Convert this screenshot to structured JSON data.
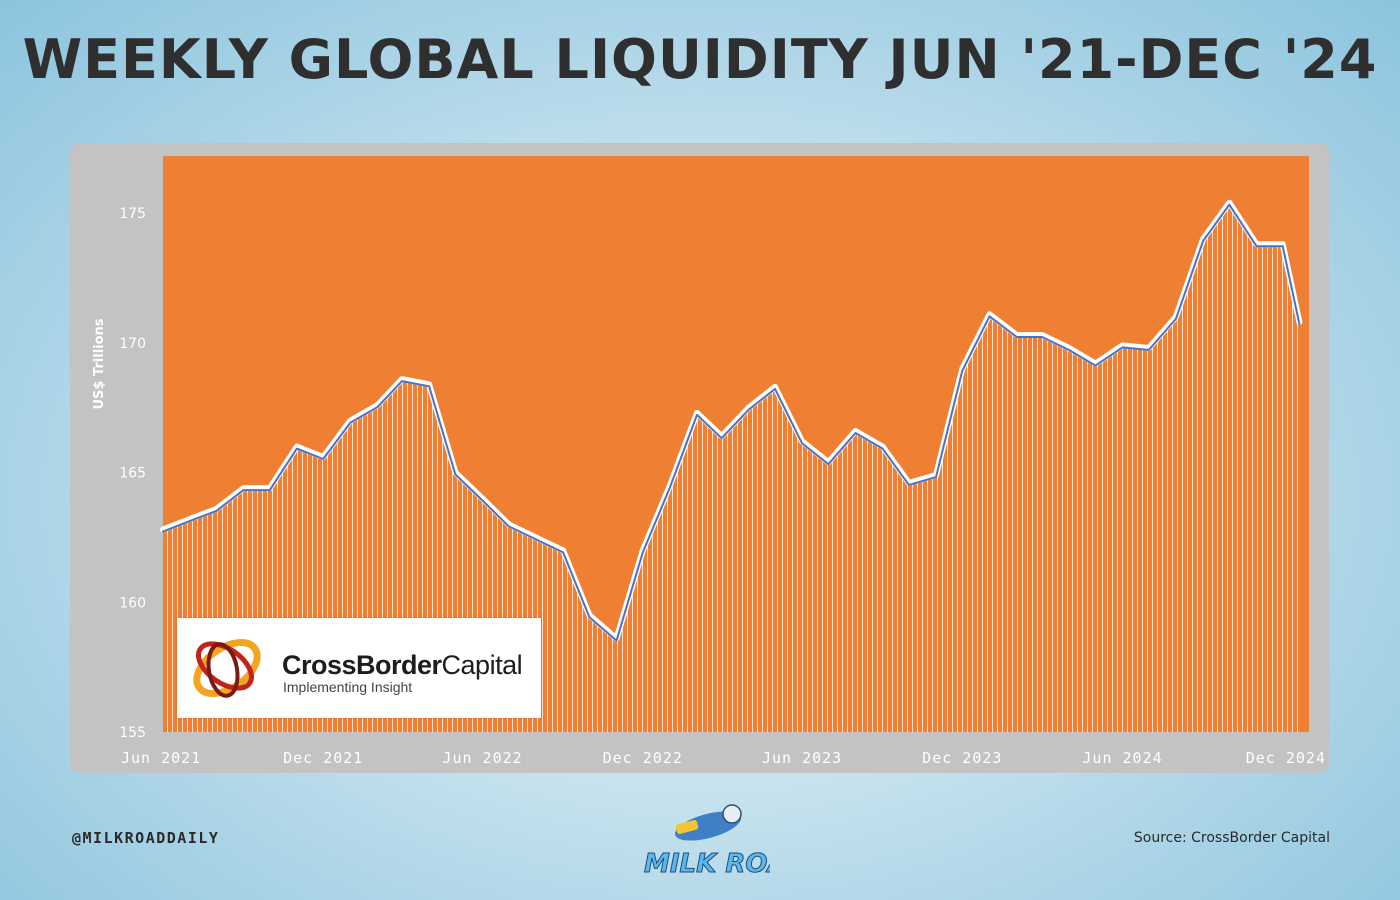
{
  "title": "WEEKLY GLOBAL LIQUIDITY JUN '21-DEC '24",
  "footer": {
    "handle": "@MILKROADDAILY",
    "source": "Source: CrossBorder Capital",
    "brand": "MILK ROAD"
  },
  "logo": {
    "name_bold": "CrossBorder",
    "name_regular": "Capital",
    "tagline": "Implementing Insight"
  },
  "colors": {
    "fill": "#ee7f33",
    "plot_background": "#ee7f33",
    "line": "#4a72c4",
    "line_outline": "#ffffff",
    "panel": "#c3c3c3",
    "title": "#2f2f2f"
  },
  "chart_data": {
    "type": "area",
    "title": "WEEKLY GLOBAL LIQUIDITY JUN '21-DEC '24",
    "ylabel": "US$ Trillions",
    "xlabel": "",
    "ylim": [
      155,
      177.2
    ],
    "yticks": [
      155,
      160,
      165,
      170,
      175
    ],
    "xticks": [
      {
        "label": "Jun 2021",
        "x": "2021-06"
      },
      {
        "label": "Dec 2021",
        "x": "2021-12"
      },
      {
        "label": "Jun 2022",
        "x": "2022-06"
      },
      {
        "label": "Dec 2022",
        "x": "2022-12"
      },
      {
        "label": "Jun 2023",
        "x": "2023-06"
      },
      {
        "label": "Dec 2023",
        "x": "2023-12"
      },
      {
        "label": "Jun 2024",
        "x": "2024-06"
      },
      {
        "label": "Dec 2024",
        "x": "2024-12"
      }
    ],
    "grid": false,
    "legend": "none",
    "series": [
      {
        "points": [
          [
            "2021-06",
            162.8
          ],
          [
            "2021-07",
            163.2
          ],
          [
            "2021-08",
            163.6
          ],
          [
            "2021-09",
            164.4
          ],
          [
            "2021-10",
            164.4
          ],
          [
            "2021-11",
            166.0
          ],
          [
            "2021-12",
            165.6
          ],
          [
            "2022-01",
            167.0
          ],
          [
            "2022-02",
            167.6
          ],
          [
            "2022-03",
            168.6
          ],
          [
            "2022-04",
            168.4
          ],
          [
            "2022-05",
            165.0
          ],
          [
            "2022-06",
            164.0
          ],
          [
            "2022-07",
            163.0
          ],
          [
            "2022-08",
            162.5
          ],
          [
            "2022-09",
            162.0
          ],
          [
            "2022-10",
            159.5
          ],
          [
            "2022-11",
            158.6
          ],
          [
            "2022-12",
            162.0
          ],
          [
            "2023-01",
            164.5
          ],
          [
            "2023-02",
            167.3
          ],
          [
            "2023-03",
            166.4
          ],
          [
            "2023-04",
            167.5
          ],
          [
            "2023-05",
            168.3
          ],
          [
            "2023-06",
            166.2
          ],
          [
            "2023-07",
            165.4
          ],
          [
            "2023-08",
            166.6
          ],
          [
            "2023-09",
            166.0
          ],
          [
            "2023-10",
            164.6
          ],
          [
            "2023-11",
            164.9
          ],
          [
            "2023-12",
            169.0
          ],
          [
            "2024-01",
            171.1
          ],
          [
            "2024-02",
            170.3
          ],
          [
            "2024-03",
            170.3
          ],
          [
            "2024-04",
            169.8
          ],
          [
            "2024-05",
            169.2
          ],
          [
            "2024-06",
            169.9
          ],
          [
            "2024-07",
            169.8
          ],
          [
            "2024-08",
            171.0
          ],
          [
            "2024-09",
            174.0
          ],
          [
            "2024-10",
            175.4
          ],
          [
            "2024-11",
            173.8
          ],
          [
            "2024-12",
            173.8
          ],
          [
            "2024-12-20",
            170.8
          ]
        ]
      }
    ]
  }
}
